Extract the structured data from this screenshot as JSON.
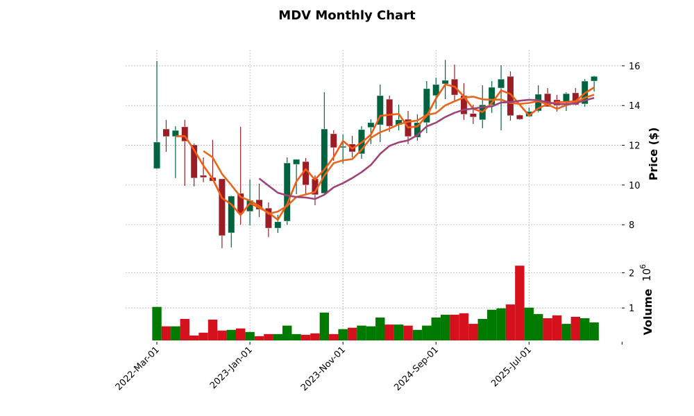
{
  "chart_data": {
    "type": "candlestick",
    "title": "MDV Monthly Chart",
    "price_panel": {
      "ylabel": "Price ($)",
      "ylim": [
        6.4,
        16.8
      ],
      "yticks": [
        "8",
        "10",
        "12",
        "14",
        "16"
      ],
      "ytick_values": [
        8,
        10,
        12,
        14,
        16
      ],
      "grid": true,
      "open": [
        10.83,
        12.82,
        12.44,
        12.93,
        12.02,
        10.49,
        10.38,
        10.31,
        7.59,
        9.58,
        8.67,
        9.26,
        8.84,
        7.83,
        8.18,
        11.04,
        11.18,
        10.31,
        9.58,
        12.58,
        11.88,
        12.06,
        11.57,
        12.9,
        13.03,
        14.32,
        13.03,
        13.31,
        12.4,
        13.14,
        14.5,
        15.09,
        15.33,
        14.5,
        13.6,
        13.28,
        14.04,
        14.88,
        15.47,
        13.52,
        13.45,
        13.73,
        14.6,
        14.29,
        14.15,
        14.64,
        14.08,
        15.23
      ],
      "high": [
        16.24,
        13.28,
        12.96,
        13.28,
        12.09,
        11.39,
        12.27,
        10.31,
        9.47,
        12.93,
        10.28,
        10.07,
        9.12,
        8.5,
        11.39,
        11.3,
        11.36,
        10.49,
        14.67,
        12.75,
        12.54,
        12.47,
        12.96,
        13.31,
        15.06,
        14.5,
        14.04,
        13.73,
        13.56,
        15.23,
        15.4,
        16.3,
        16.06,
        15.13,
        14.04,
        15.02,
        15.23,
        16.03,
        15.72,
        13.55,
        13.9,
        15.02,
        14.88,
        14.53,
        14.67,
        14.88,
        15.33,
        15.5
      ],
      "low": [
        10.8,
        11.67,
        10.35,
        9.96,
        9.93,
        10.14,
        10.2,
        6.82,
        6.86,
        8.0,
        7.97,
        8.39,
        7.38,
        7.59,
        8.0,
        9.54,
        9.54,
        8.98,
        9.55,
        11.22,
        11.08,
        11.39,
        11.32,
        12.06,
        12.16,
        12.68,
        12.75,
        12.06,
        12.23,
        12.61,
        13.84,
        14.32,
        14.25,
        13.28,
        13.07,
        12.86,
        13.63,
        12.75,
        13.24,
        13.28,
        13.45,
        13.66,
        13.94,
        13.7,
        13.73,
        14.01,
        13.94,
        14.71
      ],
      "close": [
        12.16,
        12.44,
        12.75,
        12.2,
        10.35,
        10.38,
        10.2,
        7.45,
        9.44,
        8.57,
        9.23,
        8.77,
        7.83,
        8.15,
        11.11,
        11.29,
        10.0,
        9.51,
        12.82,
        11.88,
        11.95,
        11.67,
        12.79,
        13.14,
        14.5,
        12.96,
        13.28,
        12.44,
        13.14,
        14.85,
        15.06,
        15.27,
        14.53,
        13.56,
        13.42,
        14.04,
        14.92,
        15.33,
        13.49,
        13.31,
        13.7,
        14.57,
        13.94,
        14.0,
        14.6,
        14.04,
        15.23,
        15.47
      ],
      "moving_averages": [
        {
          "period": 3,
          "color": "#f25c14"
        },
        {
          "period": 6,
          "color": "#e8661e"
        },
        {
          "period": 12,
          "color": "#9c4478"
        }
      ]
    },
    "volume_panel": {
      "ylabel": "Volume",
      "exponent_label": "10",
      "exponent_power": "6",
      "ylim": [
        0.08,
        2.4
      ],
      "yticks": [
        "1",
        "2"
      ],
      "ytick_values": [
        1,
        2
      ],
      "values_millions": [
        1.03,
        0.48,
        0.48,
        0.69,
        0.22,
        0.3,
        0.67,
        0.36,
        0.38,
        0.42,
        0.32,
        0.2,
        0.26,
        0.26,
        0.5,
        0.26,
        0.24,
        0.28,
        0.87,
        0.26,
        0.4,
        0.44,
        0.5,
        0.48,
        0.73,
        0.53,
        0.53,
        0.5,
        0.38,
        0.5,
        0.73,
        0.81,
        0.81,
        0.85,
        0.55,
        0.69,
        0.95,
        0.99,
        1.1,
        2.2,
        1.01,
        0.83,
        0.71,
        0.79,
        0.55,
        0.75,
        0.71,
        0.59
      ]
    },
    "xticks": [
      {
        "index": 0,
        "label": "2022-Mar-01"
      },
      {
        "index": 10,
        "label": "2023-Jan-01"
      },
      {
        "index": 20,
        "label": "2023-Nov-01"
      },
      {
        "index": 30,
        "label": "2024-Sep-01"
      },
      {
        "index": 40,
        "label": "2025-Jul-01"
      },
      {
        "index": 50,
        "label": ""
      }
    ],
    "xlim": [
      -3.36,
      49.9
    ],
    "colors": {
      "candle_up": "#006340",
      "candle_down": "#9b1c24",
      "volume_up": "#007a00",
      "volume_down": "#d4111c"
    }
  }
}
